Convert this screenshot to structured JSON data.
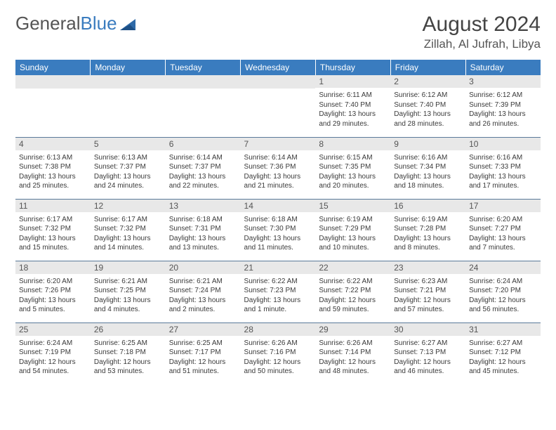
{
  "brand": {
    "part1": "General",
    "part2": "Blue"
  },
  "title": "August 2024",
  "location": "Zillah, Al Jufrah, Libya",
  "colors": {
    "header_bg": "#3a7cbf",
    "header_text": "#ffffff",
    "daynum_bg": "#e8e8e8",
    "row_border": "#5a7a9a",
    "body_text": "#3a3a3a",
    "title_text": "#444444"
  },
  "weekdays": [
    "Sunday",
    "Monday",
    "Tuesday",
    "Wednesday",
    "Thursday",
    "Friday",
    "Saturday"
  ],
  "grid": [
    [
      null,
      null,
      null,
      null,
      {
        "n": "1",
        "sr": "6:11 AM",
        "ss": "7:40 PM",
        "dl": "13 hours and 29 minutes."
      },
      {
        "n": "2",
        "sr": "6:12 AM",
        "ss": "7:40 PM",
        "dl": "13 hours and 28 minutes."
      },
      {
        "n": "3",
        "sr": "6:12 AM",
        "ss": "7:39 PM",
        "dl": "13 hours and 26 minutes."
      }
    ],
    [
      {
        "n": "4",
        "sr": "6:13 AM",
        "ss": "7:38 PM",
        "dl": "13 hours and 25 minutes."
      },
      {
        "n": "5",
        "sr": "6:13 AM",
        "ss": "7:37 PM",
        "dl": "13 hours and 24 minutes."
      },
      {
        "n": "6",
        "sr": "6:14 AM",
        "ss": "7:37 PM",
        "dl": "13 hours and 22 minutes."
      },
      {
        "n": "7",
        "sr": "6:14 AM",
        "ss": "7:36 PM",
        "dl": "13 hours and 21 minutes."
      },
      {
        "n": "8",
        "sr": "6:15 AM",
        "ss": "7:35 PM",
        "dl": "13 hours and 20 minutes."
      },
      {
        "n": "9",
        "sr": "6:16 AM",
        "ss": "7:34 PM",
        "dl": "13 hours and 18 minutes."
      },
      {
        "n": "10",
        "sr": "6:16 AM",
        "ss": "7:33 PM",
        "dl": "13 hours and 17 minutes."
      }
    ],
    [
      {
        "n": "11",
        "sr": "6:17 AM",
        "ss": "7:32 PM",
        "dl": "13 hours and 15 minutes."
      },
      {
        "n": "12",
        "sr": "6:17 AM",
        "ss": "7:32 PM",
        "dl": "13 hours and 14 minutes."
      },
      {
        "n": "13",
        "sr": "6:18 AM",
        "ss": "7:31 PM",
        "dl": "13 hours and 13 minutes."
      },
      {
        "n": "14",
        "sr": "6:18 AM",
        "ss": "7:30 PM",
        "dl": "13 hours and 11 minutes."
      },
      {
        "n": "15",
        "sr": "6:19 AM",
        "ss": "7:29 PM",
        "dl": "13 hours and 10 minutes."
      },
      {
        "n": "16",
        "sr": "6:19 AM",
        "ss": "7:28 PM",
        "dl": "13 hours and 8 minutes."
      },
      {
        "n": "17",
        "sr": "6:20 AM",
        "ss": "7:27 PM",
        "dl": "13 hours and 7 minutes."
      }
    ],
    [
      {
        "n": "18",
        "sr": "6:20 AM",
        "ss": "7:26 PM",
        "dl": "13 hours and 5 minutes."
      },
      {
        "n": "19",
        "sr": "6:21 AM",
        "ss": "7:25 PM",
        "dl": "13 hours and 4 minutes."
      },
      {
        "n": "20",
        "sr": "6:21 AM",
        "ss": "7:24 PM",
        "dl": "13 hours and 2 minutes."
      },
      {
        "n": "21",
        "sr": "6:22 AM",
        "ss": "7:23 PM",
        "dl": "13 hours and 1 minute."
      },
      {
        "n": "22",
        "sr": "6:22 AM",
        "ss": "7:22 PM",
        "dl": "12 hours and 59 minutes."
      },
      {
        "n": "23",
        "sr": "6:23 AM",
        "ss": "7:21 PM",
        "dl": "12 hours and 57 minutes."
      },
      {
        "n": "24",
        "sr": "6:24 AM",
        "ss": "7:20 PM",
        "dl": "12 hours and 56 minutes."
      }
    ],
    [
      {
        "n": "25",
        "sr": "6:24 AM",
        "ss": "7:19 PM",
        "dl": "12 hours and 54 minutes."
      },
      {
        "n": "26",
        "sr": "6:25 AM",
        "ss": "7:18 PM",
        "dl": "12 hours and 53 minutes."
      },
      {
        "n": "27",
        "sr": "6:25 AM",
        "ss": "7:17 PM",
        "dl": "12 hours and 51 minutes."
      },
      {
        "n": "28",
        "sr": "6:26 AM",
        "ss": "7:16 PM",
        "dl": "12 hours and 50 minutes."
      },
      {
        "n": "29",
        "sr": "6:26 AM",
        "ss": "7:14 PM",
        "dl": "12 hours and 48 minutes."
      },
      {
        "n": "30",
        "sr": "6:27 AM",
        "ss": "7:13 PM",
        "dl": "12 hours and 46 minutes."
      },
      {
        "n": "31",
        "sr": "6:27 AM",
        "ss": "7:12 PM",
        "dl": "12 hours and 45 minutes."
      }
    ]
  ],
  "labels": {
    "sunrise": "Sunrise:",
    "sunset": "Sunset:",
    "daylight": "Daylight:"
  }
}
